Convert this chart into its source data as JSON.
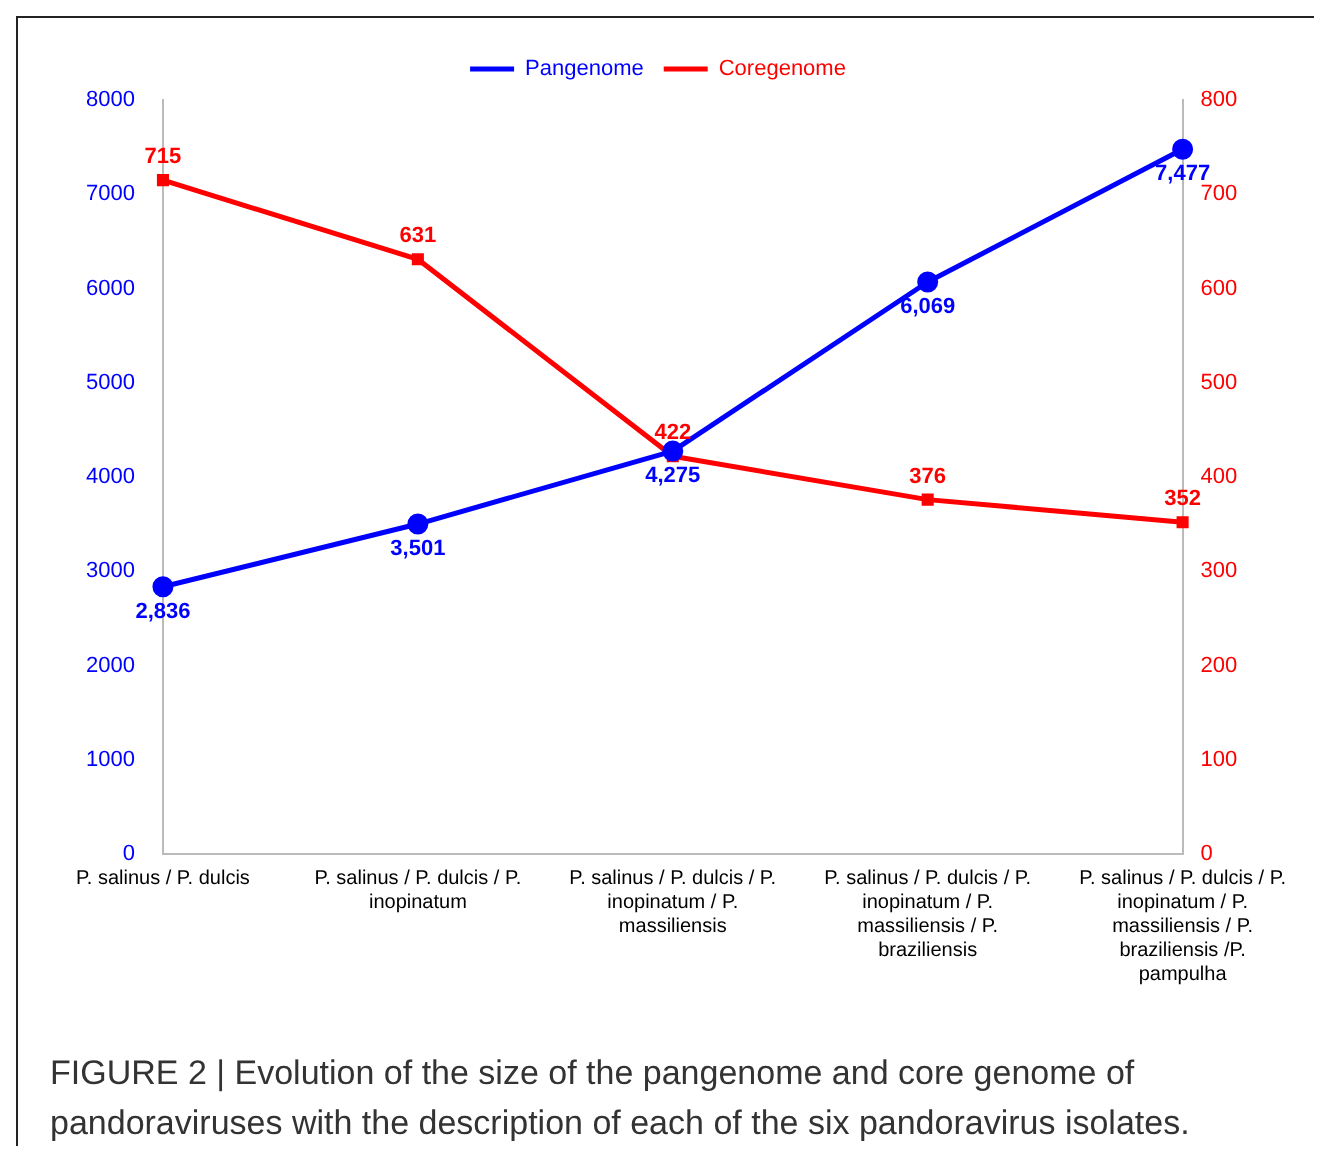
{
  "chart_data": {
    "type": "line",
    "categories": [
      "P. salinus / P. dulcis",
      "P. salinus / P. dulcis / P. inopinatum",
      "P. salinus / P. dulcis / P. inopinatum / P. massiliensis",
      "P. salinus / P. dulcis / P. inopinatum / P. massiliensis / P. braziliensis",
      "P. salinus / P. dulcis / P. inopinatum / P. massiliensis / P. braziliensis /P. pampulha"
    ],
    "series": [
      {
        "name": "Pangenome",
        "color": "#0000ff",
        "values": [
          2836,
          3501,
          4275,
          6069,
          7477
        ],
        "value_labels": [
          "2,836",
          "3,501",
          "4,275",
          "6,069",
          "7,477"
        ],
        "marker": "circle"
      },
      {
        "name": "Coregenome",
        "color": "#ff0000",
        "values": [
          715,
          631,
          422,
          376,
          352
        ],
        "value_labels": [
          "715",
          "631",
          "422",
          "376",
          "352"
        ],
        "marker": "square",
        "axis": "y2"
      }
    ],
    "ylim": [
      0,
      8000
    ],
    "yticks": [
      0,
      1000,
      2000,
      3000,
      4000,
      5000,
      6000,
      7000,
      8000
    ],
    "y2lim": [
      0,
      800
    ],
    "y2ticks": [
      0,
      100,
      200,
      300,
      400,
      500,
      600,
      700,
      800
    ],
    "grid": false,
    "legend": "top",
    "annotations": [
      "FIGURE 2 | Evolution of the size of the pangenome and core genome of pandoraviruses with the description of each of the six pandoravirus isolates."
    ]
  }
}
